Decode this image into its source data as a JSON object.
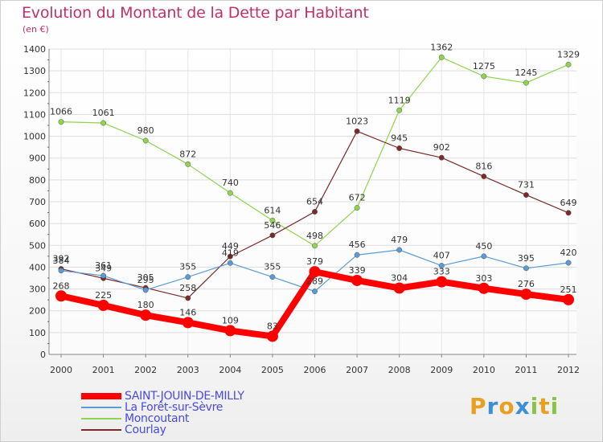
{
  "title": "Evolution du Montant de la Dette par Habitant",
  "subtitle": "(en €)",
  "logo": {
    "letters": [
      "P",
      "r",
      "o",
      "x",
      "i",
      "t",
      "i"
    ],
    "colors": [
      "#e8a020",
      "#3a8fd6",
      "#e8a020",
      "#3a8fd6",
      "#8bc34a",
      "#e8a020",
      "#8bc34a"
    ]
  },
  "chart_data": {
    "type": "line",
    "x": [
      2000,
      2001,
      2002,
      2003,
      2004,
      2005,
      2006,
      2007,
      2008,
      2009,
      2010,
      2011,
      2012
    ],
    "x_tick_labels": [
      "2000",
      "2001",
      "2002",
      "2003",
      "2004",
      "2005",
      "2006",
      "2007",
      "2008",
      "2009",
      "2010",
      "2011",
      "2012"
    ],
    "ylim": [
      0,
      1400
    ],
    "y_ticks": [
      0,
      100,
      200,
      300,
      400,
      500,
      600,
      700,
      800,
      900,
      1000,
      1100,
      1200,
      1300,
      1400
    ],
    "grid": true,
    "legend_placement": "bottom-left",
    "series": [
      {
        "name": "SAINT-JOUIN-DE-MILLY",
        "color": "#ff0000",
        "values": [
          268,
          225,
          180,
          146,
          109,
          83,
          379,
          339,
          304,
          333,
          303,
          276,
          251
        ],
        "labels": [
          "268",
          "225",
          "180",
          "146",
          "109",
          "83",
          "379",
          "339",
          "304",
          "333",
          "303",
          "276",
          "251"
        ]
      },
      {
        "name": "La Forêt-sur-Sèvre",
        "color": "#5b9bd5",
        "values": [
          384,
          361,
          295,
          355,
          419,
          355,
          289,
          456,
          479,
          407,
          450,
          395,
          420
        ],
        "labels": [
          "384",
          "361",
          "295",
          "355",
          "419",
          "355",
          "289",
          "456",
          "479",
          "407",
          "450",
          "395",
          "420"
        ]
      },
      {
        "name": "Moncoutant",
        "color": "#8ed44f",
        "values": [
          1066,
          1061,
          980,
          872,
          740,
          614,
          498,
          672,
          1119,
          1362,
          1275,
          1245,
          1329
        ],
        "labels": [
          "1066",
          "1061",
          "980",
          "872",
          "740",
          "614",
          "498",
          "672",
          "1119",
          "1362",
          "1275",
          "1245",
          "1329"
        ]
      },
      {
        "name": "Courlay",
        "color": "#7b2a2a",
        "values": [
          392,
          349,
          305,
          258,
          449,
          546,
          654,
          1023,
          945,
          902,
          816,
          731,
          649
        ],
        "labels": [
          "392",
          "349",
          "305",
          "258",
          "449",
          "546",
          "654",
          "1023",
          "945",
          "902",
          "816",
          "731",
          "649"
        ]
      }
    ]
  }
}
